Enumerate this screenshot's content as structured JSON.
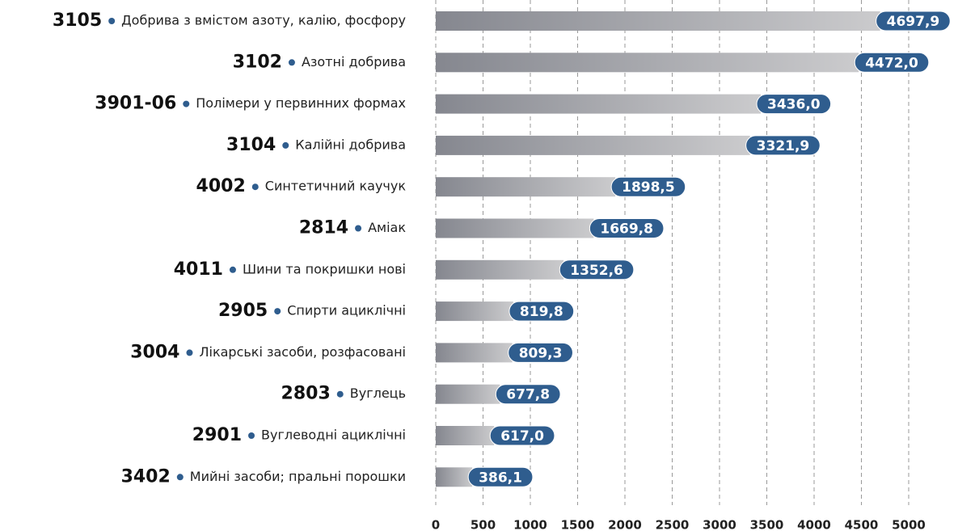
{
  "chart_data": {
    "type": "barh",
    "codes": [
      "3105",
      "3102",
      "3901-06",
      "3104",
      "4002",
      "2814",
      "4011",
      "2905",
      "3004",
      "2803",
      "2901",
      "3402"
    ],
    "categories": [
      "Добрива з вмістом азоту, калію, фосфору",
      "Азотні добрива",
      "Полімери у первинних формах",
      "Калійні добрива",
      "Синтетичний каучук",
      "Аміак",
      "Шини та покришки нові",
      "Спирти ациклічні",
      "Лікарські засоби, розфасовані",
      "Вуглець",
      "Вуглеводні ациклічні",
      "Мийні засоби; пральні порошки"
    ],
    "values": [
      4697.9,
      4472.0,
      3436.0,
      3321.9,
      1898.5,
      1669.8,
      1352.6,
      819.8,
      809.3,
      677.8,
      617.0,
      386.1
    ],
    "value_labels": [
      "4697,9",
      "4472,0",
      "3436,0",
      "3321,9",
      "1898,5",
      "1669,8",
      "1352,6",
      "819,8",
      "809,3",
      "677,8",
      "617,0",
      "386,1"
    ],
    "xlim": [
      0,
      5000
    ],
    "xticks": [
      0,
      500,
      1000,
      1500,
      2000,
      2500,
      3000,
      3500,
      4000,
      4500,
      5000
    ],
    "grid": true,
    "color": "#2f5d8e"
  }
}
